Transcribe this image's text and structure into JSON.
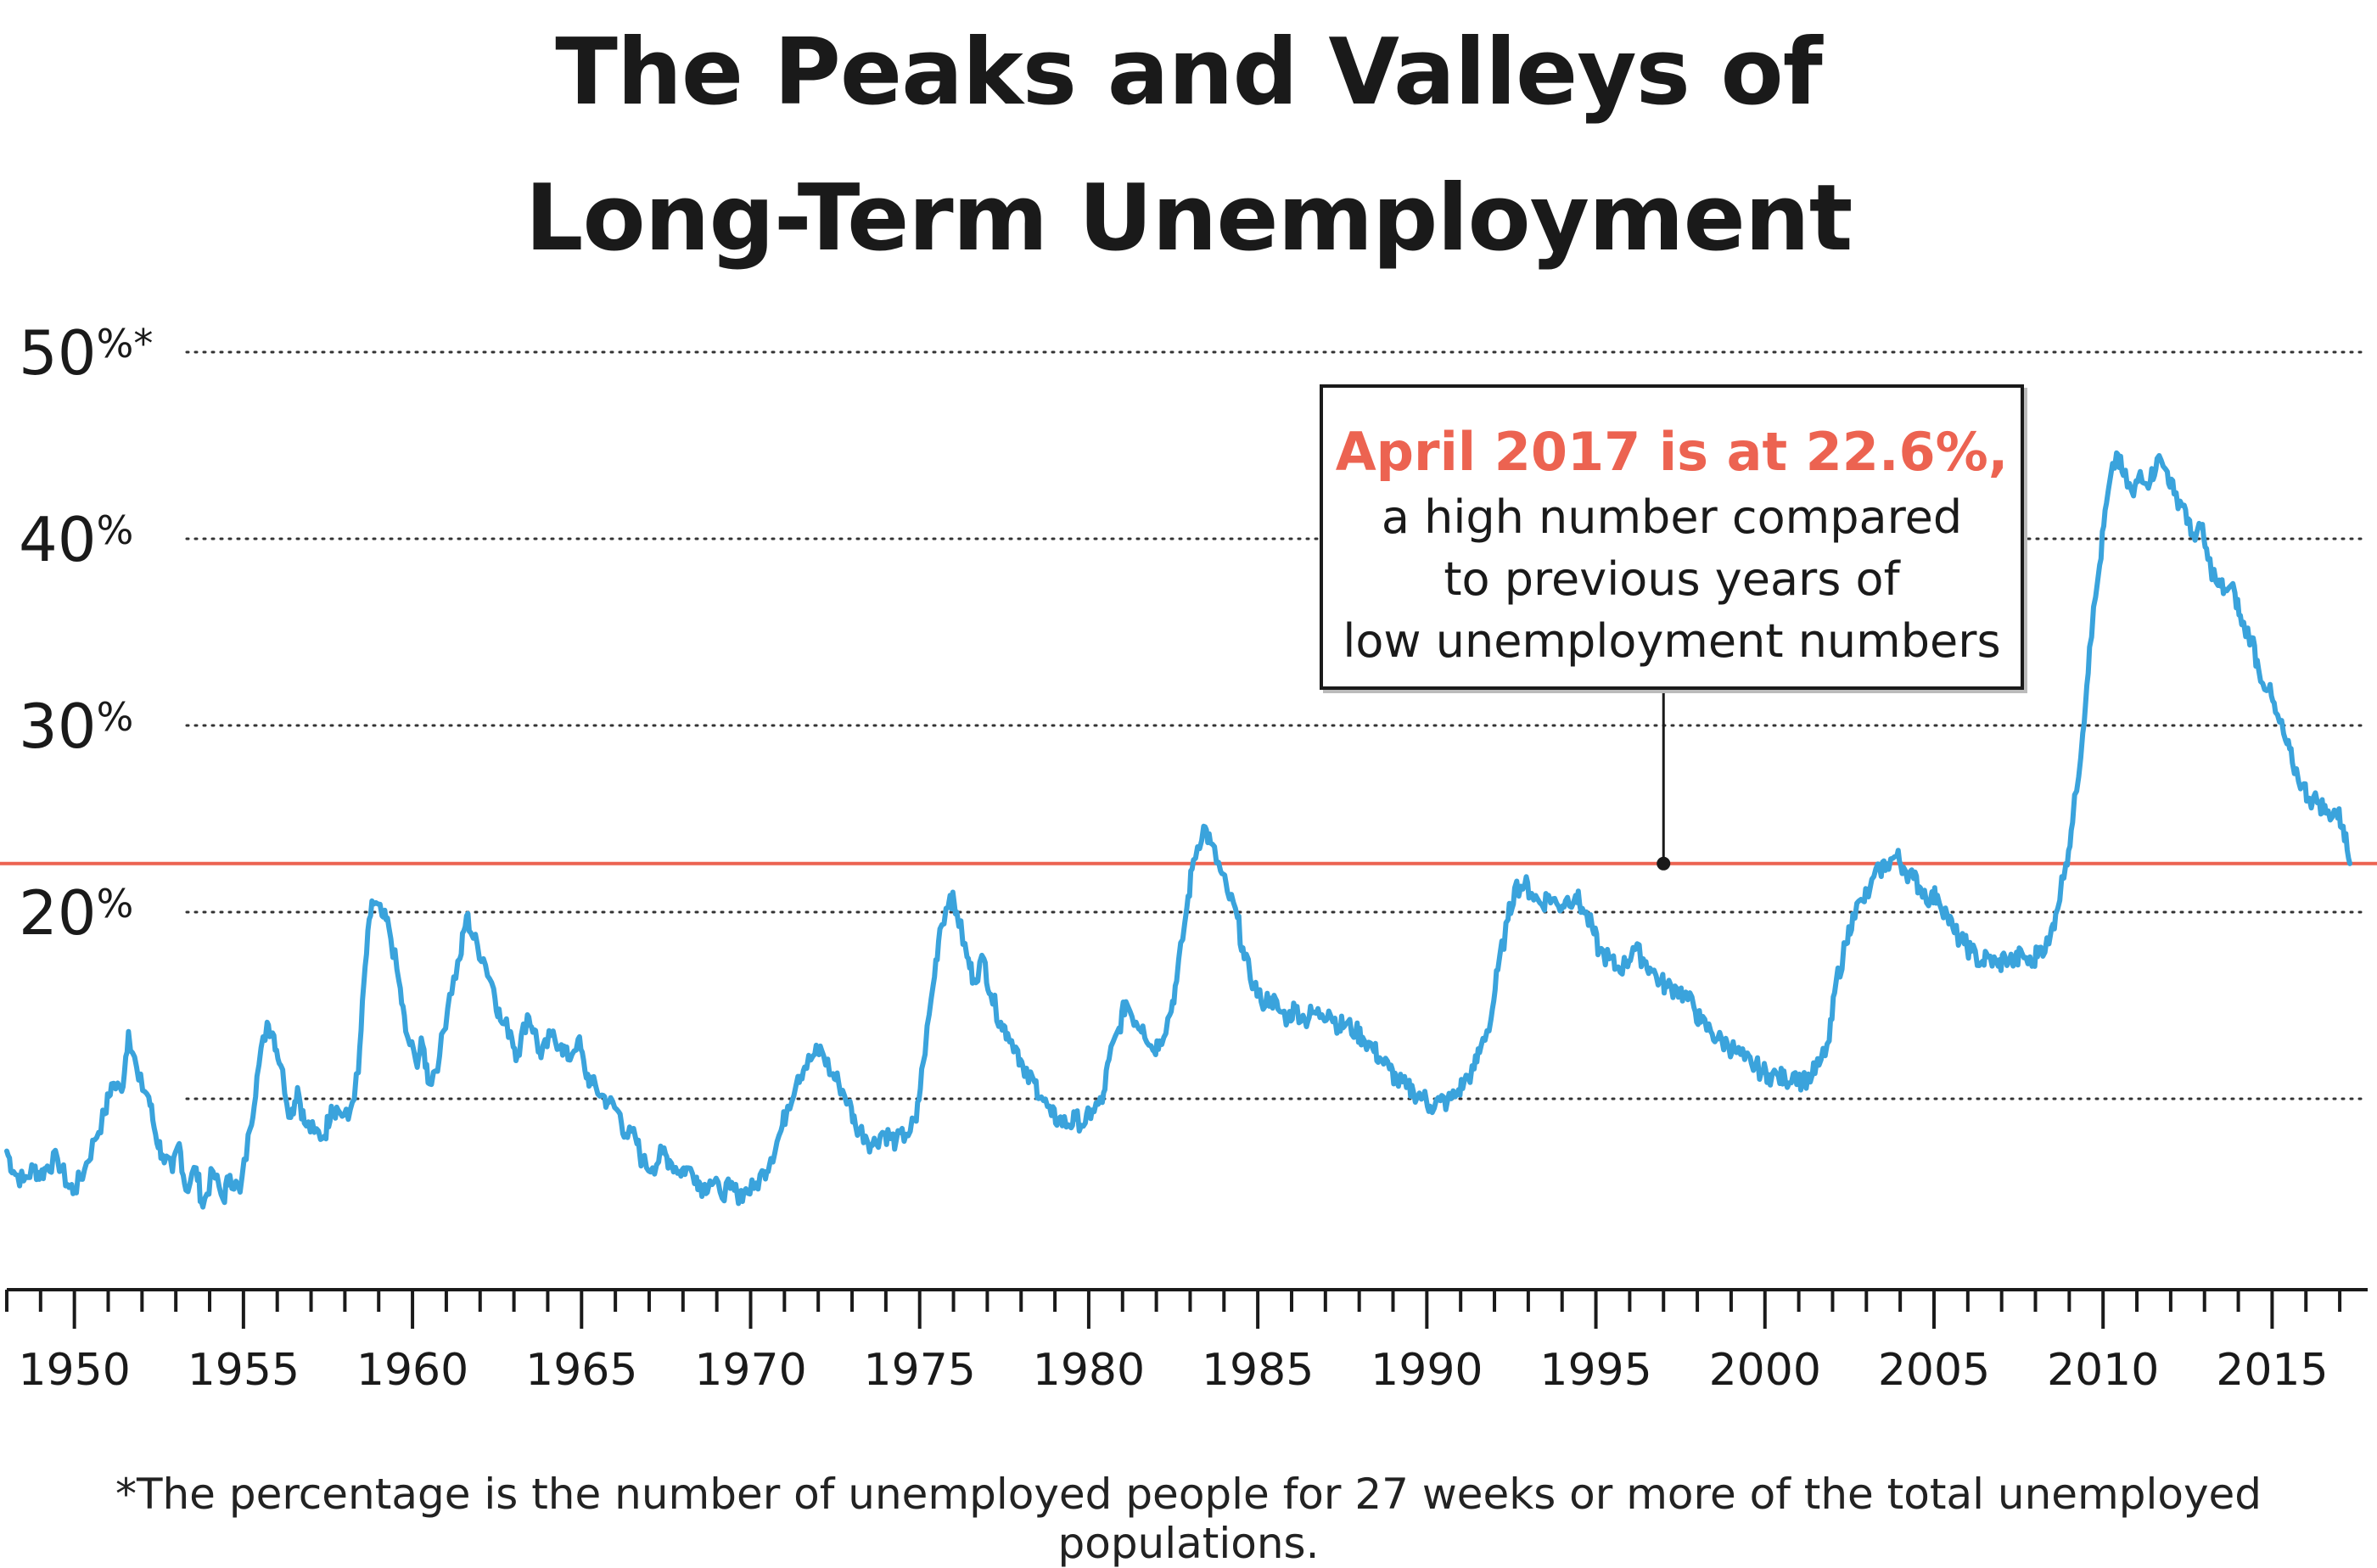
{
  "title_lines": [
    "The Peaks and Valleys of",
    "Long-Term Unemployment"
  ],
  "footnote": "*The percentage is the number of unemployed people for 27 weeks or more of the total unemployed populations.",
  "callout": {
    "headline": "April 2017 is at 22.6%,",
    "lines": [
      "a high number compared",
      "to previous years of",
      "low unemployment numbers"
    ]
  },
  "colors": {
    "series": "#3aa3dc",
    "reference": "#ec6351",
    "text": "#1a1a1a",
    "grid": "#333333"
  },
  "chart_data": {
    "type": "line",
    "xlim": [
      1947.8,
      2017.6
    ],
    "ylim": [
      0,
      50
    ],
    "yticks": [
      {
        "value": 50,
        "label": "50%*"
      },
      {
        "value": 40,
        "label": "40%"
      },
      {
        "value": 30,
        "label": "30%"
      },
      {
        "value": 20,
        "label": "20%"
      },
      {
        "value": 10,
        "label": ""
      }
    ],
    "xticks": [
      1950,
      1955,
      1960,
      1965,
      1970,
      1975,
      1980,
      1985,
      1990,
      1995,
      2000,
      2005,
      2010,
      2015
    ],
    "minor_tick_step": 1,
    "grid": "horizontal dotted",
    "reference_line": {
      "y": 22.6,
      "label": "April 2017 is at 22.6%"
    },
    "annotation_x": 1997,
    "series": [
      {
        "points": [
          [
            1948.0,
            7.2
          ],
          [
            1948.2,
            6.1
          ],
          [
            1948.5,
            5.6
          ],
          [
            1948.8,
            6.3
          ],
          [
            1949.0,
            5.9
          ],
          [
            1949.2,
            6.4
          ],
          [
            1949.5,
            6.8
          ],
          [
            1949.8,
            5.4
          ],
          [
            1950.0,
            5.1
          ],
          [
            1950.3,
            6.2
          ],
          [
            1950.6,
            7.8
          ],
          [
            1950.9,
            9.2
          ],
          [
            1951.1,
            10.8
          ],
          [
            1951.4,
            10.4
          ],
          [
            1951.6,
            13.6
          ],
          [
            1951.9,
            11.0
          ],
          [
            1952.2,
            10.1
          ],
          [
            1952.4,
            8.1
          ],
          [
            1952.6,
            7.0
          ],
          [
            1952.9,
            6.1
          ],
          [
            1953.1,
            7.6
          ],
          [
            1953.3,
            5.1
          ],
          [
            1953.6,
            6.3
          ],
          [
            1953.8,
            4.2
          ],
          [
            1954.1,
            6.1
          ],
          [
            1954.4,
            4.6
          ],
          [
            1954.6,
            5.9
          ],
          [
            1954.9,
            5.0
          ],
          [
            1955.2,
            8.4
          ],
          [
            1955.4,
            11.2
          ],
          [
            1955.7,
            14.1
          ],
          [
            1955.9,
            13.4
          ],
          [
            1956.1,
            11.8
          ],
          [
            1956.4,
            9.0
          ],
          [
            1956.6,
            10.6
          ],
          [
            1956.8,
            8.7
          ],
          [
            1957.1,
            8.2
          ],
          [
            1957.4,
            8.0
          ],
          [
            1957.6,
            9.6
          ],
          [
            1957.8,
            9.4
          ],
          [
            1958.1,
            8.9
          ],
          [
            1958.4,
            11.4
          ],
          [
            1958.6,
            17.1
          ],
          [
            1958.8,
            20.6
          ],
          [
            1959.1,
            19.8
          ],
          [
            1959.3,
            19.2
          ],
          [
            1959.6,
            16.3
          ],
          [
            1959.8,
            13.6
          ],
          [
            1960.1,
            12.0
          ],
          [
            1960.3,
            12.9
          ],
          [
            1960.5,
            10.8
          ],
          [
            1960.8,
            12.3
          ],
          [
            1961.1,
            15.6
          ],
          [
            1961.4,
            17.5
          ],
          [
            1961.6,
            19.8
          ],
          [
            1961.8,
            18.6
          ],
          [
            1962.1,
            17.5
          ],
          [
            1962.4,
            15.9
          ],
          [
            1962.6,
            14.2
          ],
          [
            1962.9,
            13.6
          ],
          [
            1963.1,
            12.3
          ],
          [
            1963.4,
            14.5
          ],
          [
            1963.6,
            13.7
          ],
          [
            1963.8,
            12.2
          ],
          [
            1964.1,
            13.4
          ],
          [
            1964.4,
            12.9
          ],
          [
            1964.6,
            12.1
          ],
          [
            1964.9,
            13.2
          ],
          [
            1965.1,
            11.5
          ],
          [
            1965.3,
            10.8
          ],
          [
            1965.6,
            10.2
          ],
          [
            1965.8,
            9.8
          ],
          [
            1966.1,
            9.3
          ],
          [
            1966.3,
            8.1
          ],
          [
            1966.6,
            7.9
          ],
          [
            1966.8,
            6.6
          ],
          [
            1967.1,
            6.3
          ],
          [
            1967.4,
            7.1
          ],
          [
            1967.6,
            6.7
          ],
          [
            1967.9,
            6.1
          ],
          [
            1968.1,
            6.3
          ],
          [
            1968.4,
            5.8
          ],
          [
            1968.6,
            5.2
          ],
          [
            1968.8,
            5.6
          ],
          [
            1969.1,
            5.0
          ],
          [
            1969.4,
            5.2
          ],
          [
            1969.6,
            4.9
          ],
          [
            1969.8,
            5.0
          ],
          [
            1970.1,
            5.2
          ],
          [
            1970.4,
            6.1
          ],
          [
            1970.6,
            6.8
          ],
          [
            1970.9,
            8.3
          ],
          [
            1971.1,
            9.6
          ],
          [
            1971.4,
            11.2
          ],
          [
            1971.6,
            11.7
          ],
          [
            1971.9,
            12.4
          ],
          [
            1972.1,
            12.6
          ],
          [
            1972.4,
            11.3
          ],
          [
            1972.6,
            10.9
          ],
          [
            1972.9,
            9.8
          ],
          [
            1973.1,
            8.6
          ],
          [
            1973.4,
            8.0
          ],
          [
            1973.6,
            7.5
          ],
          [
            1973.9,
            8.2
          ],
          [
            1974.1,
            8.0
          ],
          [
            1974.3,
            7.7
          ],
          [
            1974.6,
            8.1
          ],
          [
            1974.9,
            8.8
          ],
          [
            1975.1,
            11.9
          ],
          [
            1975.4,
            16.1
          ],
          [
            1975.6,
            19.1
          ],
          [
            1975.9,
            20.9
          ],
          [
            1976.1,
            20.0
          ],
          [
            1976.4,
            17.6
          ],
          [
            1976.6,
            16.4
          ],
          [
            1976.9,
            17.5
          ],
          [
            1977.1,
            15.6
          ],
          [
            1977.4,
            14.1
          ],
          [
            1977.6,
            13.5
          ],
          [
            1977.9,
            12.6
          ],
          [
            1978.1,
            11.2
          ],
          [
            1978.4,
            10.9
          ],
          [
            1978.6,
            10.1
          ],
          [
            1978.9,
            9.1
          ],
          [
            1979.1,
            8.9
          ],
          [
            1979.4,
            8.6
          ],
          [
            1979.6,
            8.9
          ],
          [
            1979.9,
            8.7
          ],
          [
            1980.1,
            9.4
          ],
          [
            1980.4,
            9.8
          ],
          [
            1980.6,
            12.1
          ],
          [
            1980.9,
            13.8
          ],
          [
            1981.1,
            15.2
          ],
          [
            1981.4,
            14.1
          ],
          [
            1981.6,
            13.9
          ],
          [
            1981.9,
            12.6
          ],
          [
            1982.1,
            13.1
          ],
          [
            1982.4,
            14.5
          ],
          [
            1982.6,
            16.3
          ],
          [
            1982.9,
            20.2
          ],
          [
            1983.1,
            22.8
          ],
          [
            1983.4,
            24.6
          ],
          [
            1983.6,
            23.7
          ],
          [
            1983.9,
            22.2
          ],
          [
            1984.1,
            21.1
          ],
          [
            1984.4,
            19.7
          ],
          [
            1984.6,
            17.5
          ],
          [
            1984.9,
            16.1
          ],
          [
            1985.1,
            15.2
          ],
          [
            1985.4,
            15.4
          ],
          [
            1985.6,
            14.8
          ],
          [
            1985.9,
            14.3
          ],
          [
            1986.1,
            14.9
          ],
          [
            1986.4,
            14.2
          ],
          [
            1986.6,
            14.6
          ],
          [
            1986.9,
            14.5
          ],
          [
            1987.1,
            14.7
          ],
          [
            1987.4,
            13.9
          ],
          [
            1987.6,
            14.0
          ],
          [
            1987.9,
            13.6
          ],
          [
            1988.1,
            13.3
          ],
          [
            1988.4,
            12.7
          ],
          [
            1988.6,
            12.2
          ],
          [
            1988.9,
            11.6
          ],
          [
            1989.1,
            11.0
          ],
          [
            1989.4,
            10.6
          ],
          [
            1989.6,
            10.4
          ],
          [
            1989.9,
            10.1
          ],
          [
            1990.1,
            9.6
          ],
          [
            1990.4,
            9.9
          ],
          [
            1990.6,
            9.8
          ],
          [
            1990.9,
            10.3
          ],
          [
            1991.1,
            10.9
          ],
          [
            1991.4,
            11.6
          ],
          [
            1991.6,
            12.8
          ],
          [
            1991.9,
            14.3
          ],
          [
            1992.1,
            16.9
          ],
          [
            1992.4,
            19.6
          ],
          [
            1992.6,
            21.3
          ],
          [
            1992.9,
            21.5
          ],
          [
            1993.1,
            21.0
          ],
          [
            1993.4,
            20.4
          ],
          [
            1993.6,
            20.9
          ],
          [
            1993.9,
            20.3
          ],
          [
            1994.1,
            20.6
          ],
          [
            1994.4,
            20.9
          ],
          [
            1994.6,
            20.2
          ],
          [
            1994.9,
            19.1
          ],
          [
            1995.1,
            17.9
          ],
          [
            1995.4,
            17.5
          ],
          [
            1995.6,
            17.0
          ],
          [
            1995.9,
            17.2
          ],
          [
            1996.1,
            18.1
          ],
          [
            1996.4,
            17.5
          ],
          [
            1996.6,
            17.0
          ],
          [
            1996.9,
            16.3
          ],
          [
            1997.1,
            16.0
          ],
          [
            1997.4,
            15.9
          ],
          [
            1997.6,
            15.6
          ],
          [
            1997.9,
            14.9
          ],
          [
            1998.1,
            14.1
          ],
          [
            1998.4,
            13.6
          ],
          [
            1998.6,
            13.2
          ],
          [
            1998.9,
            12.9
          ],
          [
            1999.1,
            12.6
          ],
          [
            1999.4,
            12.1
          ],
          [
            1999.6,
            11.9
          ],
          [
            1999.9,
            11.5
          ],
          [
            2000.1,
            11.3
          ],
          [
            2000.4,
            11.2
          ],
          [
            2000.6,
            11.0
          ],
          [
            2000.9,
            11.4
          ],
          [
            2001.1,
            10.9
          ],
          [
            2001.4,
            11.3
          ],
          [
            2001.6,
            11.8
          ],
          [
            2001.9,
            13.1
          ],
          [
            2002.1,
            16.2
          ],
          [
            2002.4,
            18.3
          ],
          [
            2002.6,
            19.9
          ],
          [
            2002.9,
            20.6
          ],
          [
            2003.1,
            21.2
          ],
          [
            2003.4,
            22.3
          ],
          [
            2003.6,
            22.6
          ],
          [
            2003.9,
            23.0
          ],
          [
            2004.1,
            22.4
          ],
          [
            2004.4,
            21.8
          ],
          [
            2004.6,
            21.3
          ],
          [
            2004.9,
            20.7
          ],
          [
            2005.1,
            20.9
          ],
          [
            2005.4,
            19.8
          ],
          [
            2005.6,
            18.9
          ],
          [
            2005.9,
            18.3
          ],
          [
            2006.1,
            17.9
          ],
          [
            2006.4,
            17.3
          ],
          [
            2006.6,
            17.6
          ],
          [
            2006.9,
            17.1
          ],
          [
            2007.1,
            17.6
          ],
          [
            2007.4,
            17.3
          ],
          [
            2007.6,
            17.8
          ],
          [
            2007.9,
            17.1
          ],
          [
            2008.1,
            18.1
          ],
          [
            2008.4,
            18.3
          ],
          [
            2008.6,
            19.9
          ],
          [
            2008.9,
            22.6
          ],
          [
            2009.1,
            24.8
          ],
          [
            2009.4,
            29.6
          ],
          [
            2009.6,
            34.2
          ],
          [
            2009.9,
            38.6
          ],
          [
            2010.1,
            41.9
          ],
          [
            2010.4,
            44.6
          ],
          [
            2010.6,
            43.4
          ],
          [
            2010.9,
            42.3
          ],
          [
            2011.1,
            43.6
          ],
          [
            2011.4,
            43.1
          ],
          [
            2011.6,
            44.3
          ],
          [
            2011.9,
            43.6
          ],
          [
            2012.1,
            42.4
          ],
          [
            2012.4,
            41.8
          ],
          [
            2012.6,
            40.2
          ],
          [
            2012.9,
            40.6
          ],
          [
            2013.1,
            38.9
          ],
          [
            2013.4,
            37.5
          ],
          [
            2013.6,
            37.3
          ],
          [
            2013.9,
            37.1
          ],
          [
            2014.1,
            35.4
          ],
          [
            2014.4,
            34.7
          ],
          [
            2014.6,
            33.0
          ],
          [
            2014.9,
            31.9
          ],
          [
            2015.1,
            30.7
          ],
          [
            2015.4,
            29.2
          ],
          [
            2015.6,
            28.0
          ],
          [
            2015.9,
            26.8
          ],
          [
            2016.1,
            26.1
          ],
          [
            2016.4,
            25.9
          ],
          [
            2016.6,
            25.3
          ],
          [
            2016.9,
            25.4
          ],
          [
            2017.1,
            24.6
          ],
          [
            2017.3,
            22.6
          ]
        ]
      }
    ]
  }
}
